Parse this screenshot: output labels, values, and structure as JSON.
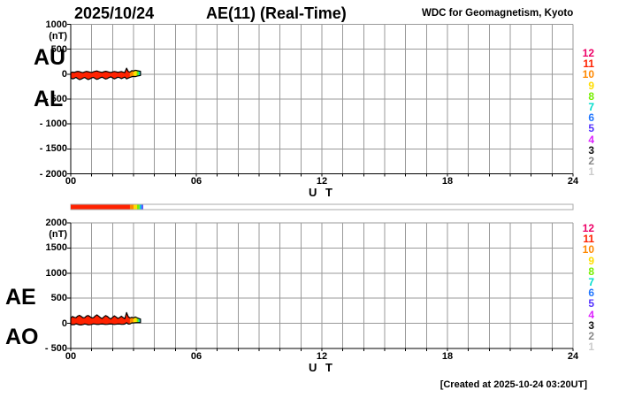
{
  "header": {
    "date": "2025/10/24",
    "title": "AE(11) (Real-Time)",
    "source": "WDC for Geomagnetism, Kyoto"
  },
  "footer": {
    "created": "[Created at 2025-10-24 03:20UT]"
  },
  "axis": {
    "x_label": "U T",
    "x_ticks": [
      {
        "h": 0,
        "label": "00"
      },
      {
        "h": 6,
        "label": "06"
      },
      {
        "h": 12,
        "label": "12"
      },
      {
        "h": 18,
        "label": "18"
      },
      {
        "h": 24,
        "label": "24"
      }
    ],
    "x_range_hours": [
      0,
      24
    ],
    "grid": "hourly",
    "grid_color": "#999999"
  },
  "station_colors": [
    {
      "n": 12,
      "color": "#ee0066"
    },
    {
      "n": 11,
      "color": "#ff2200"
    },
    {
      "n": 10,
      "color": "#ff8800"
    },
    {
      "n": 9,
      "color": "#ffdd00"
    },
    {
      "n": 8,
      "color": "#77ee00"
    },
    {
      "n": 7,
      "color": "#00ddcc"
    },
    {
      "n": 6,
      "color": "#2277ff"
    },
    {
      "n": 5,
      "color": "#5533ff"
    },
    {
      "n": 4,
      "color": "#dd22ff"
    },
    {
      "n": 3,
      "color": "#111111"
    },
    {
      "n": 2,
      "color": "#888888"
    },
    {
      "n": 1,
      "color": "#cccccc"
    }
  ],
  "availability_bar": {
    "range_hours": [
      0,
      24
    ],
    "border_color": "#aaaaaa",
    "segments": [
      {
        "from": 0.0,
        "to": 2.83,
        "color": "#ff2200"
      },
      {
        "from": 2.83,
        "to": 3.0,
        "color": "#ff8800"
      },
      {
        "from": 3.0,
        "to": 3.17,
        "color": "#ffdd00"
      },
      {
        "from": 3.17,
        "to": 3.29,
        "color": "#77ee00"
      },
      {
        "from": 3.29,
        "to": 3.35,
        "color": "#00ddcc"
      },
      {
        "from": 3.35,
        "to": 3.42,
        "color": "#2277ff"
      },
      {
        "from": 3.42,
        "to": 3.46,
        "color": "#5533ff"
      }
    ]
  },
  "chart_data": [
    {
      "type": "area",
      "name": "AU-AL band",
      "left_labels": [
        "AU",
        "AL"
      ],
      "unit": "(nT)",
      "ylim": [
        -2000,
        1000
      ],
      "yticks": [
        {
          "v": 1000,
          "label": "1000"
        },
        {
          "v": 500,
          "label": "500"
        },
        {
          "v": 0,
          "label": "0"
        },
        {
          "v": -500,
          "label": "- 500"
        },
        {
          "v": -1000,
          "label": "- 1000"
        },
        {
          "v": -1500,
          "label": "- 1500"
        },
        {
          "v": -2000,
          "label": "- 2000"
        }
      ],
      "x_hours": [
        0,
        0.083,
        0.167,
        0.25,
        0.333,
        0.417,
        0.5,
        0.583,
        0.667,
        0.75,
        0.833,
        0.917,
        1.0,
        1.083,
        1.167,
        1.25,
        1.333,
        1.417,
        1.5,
        1.583,
        1.667,
        1.75,
        1.833,
        1.917,
        2.0,
        2.083,
        2.167,
        2.25,
        2.333,
        2.417,
        2.5,
        2.583,
        2.667,
        2.75,
        2.833,
        2.917,
        3.0,
        3.083,
        3.167,
        3.25,
        3.333
      ],
      "series": [
        {
          "name": "AU",
          "values": [
            30,
            42,
            35,
            48,
            55,
            50,
            38,
            32,
            45,
            55,
            48,
            40,
            34,
            46,
            58,
            65,
            52,
            42,
            36,
            48,
            57,
            50,
            40,
            33,
            44,
            54,
            47,
            37,
            44,
            52,
            40,
            33,
            120,
            52,
            42,
            70,
            62,
            78,
            72,
            64,
            58
          ]
        },
        {
          "name": "AL",
          "values": [
            -75,
            -95,
            -85,
            -65,
            -90,
            -110,
            -100,
            -80,
            -68,
            -90,
            -108,
            -95,
            -75,
            -65,
            -88,
            -105,
            -92,
            -72,
            -60,
            -80,
            -98,
            -88,
            -68,
            -55,
            -75,
            -95,
            -80,
            -62,
            -70,
            -90,
            -75,
            -60,
            -95,
            -80,
            -65,
            -52,
            -45,
            -50,
            -40,
            -33,
            -28
          ]
        }
      ],
      "station_counts": [
        11,
        11,
        11,
        11,
        11,
        11,
        11,
        11,
        11,
        11,
        11,
        11,
        11,
        11,
        11,
        11,
        11,
        11,
        11,
        11,
        11,
        11,
        11,
        11,
        11,
        11,
        11,
        11,
        11,
        11,
        11,
        11,
        11,
        11,
        10,
        10,
        9,
        9,
        8,
        7,
        7
      ]
    },
    {
      "type": "area",
      "name": "AE-AO band",
      "left_labels": [
        "AE",
        "AO"
      ],
      "unit": "(nT)",
      "ylim": [
        -500,
        2000
      ],
      "yticks": [
        {
          "v": 2000,
          "label": "2000"
        },
        {
          "v": 1500,
          "label": "1500"
        },
        {
          "v": 1000,
          "label": "1000"
        },
        {
          "v": 500,
          "label": "500"
        },
        {
          "v": 0,
          "label": "0"
        },
        {
          "v": -500,
          "label": "- 500"
        }
      ],
      "x_hours": [
        0,
        0.083,
        0.167,
        0.25,
        0.333,
        0.417,
        0.5,
        0.583,
        0.667,
        0.75,
        0.833,
        0.917,
        1.0,
        1.083,
        1.167,
        1.25,
        1.333,
        1.417,
        1.5,
        1.583,
        1.667,
        1.75,
        1.833,
        1.917,
        2.0,
        2.083,
        2.167,
        2.25,
        2.333,
        2.417,
        2.5,
        2.583,
        2.667,
        2.75,
        2.833,
        2.917,
        3.0,
        3.083,
        3.167,
        3.25,
        3.333
      ],
      "series": [
        {
          "name": "AE",
          "values": [
            105,
            137,
            120,
            113,
            145,
            160,
            138,
            112,
            113,
            145,
            156,
            135,
            109,
            111,
            146,
            170,
            144,
            114,
            96,
            128,
            155,
            138,
            108,
            88,
            119,
            149,
            127,
            99,
            114,
            142,
            115,
            93,
            215,
            132,
            107,
            122,
            107,
            128,
            112,
            97,
            86
          ]
        },
        {
          "name": "AO",
          "values": [
            -23,
            -27,
            -25,
            -9,
            -18,
            -30,
            -31,
            -24,
            -12,
            -18,
            -30,
            -28,
            -21,
            -10,
            -15,
            -20,
            -20,
            -15,
            -12,
            -16,
            -21,
            -19,
            -14,
            -11,
            -16,
            -21,
            -17,
            -13,
            -13,
            -19,
            -18,
            -14,
            13,
            -14,
            -12,
            9,
            9,
            14,
            16,
            16,
            15
          ]
        }
      ],
      "station_counts": [
        11,
        11,
        11,
        11,
        11,
        11,
        11,
        11,
        11,
        11,
        11,
        11,
        11,
        11,
        11,
        11,
        11,
        11,
        11,
        11,
        11,
        11,
        11,
        11,
        11,
        11,
        11,
        11,
        11,
        11,
        11,
        11,
        11,
        11,
        10,
        10,
        9,
        9,
        8,
        7,
        7
      ]
    }
  ]
}
